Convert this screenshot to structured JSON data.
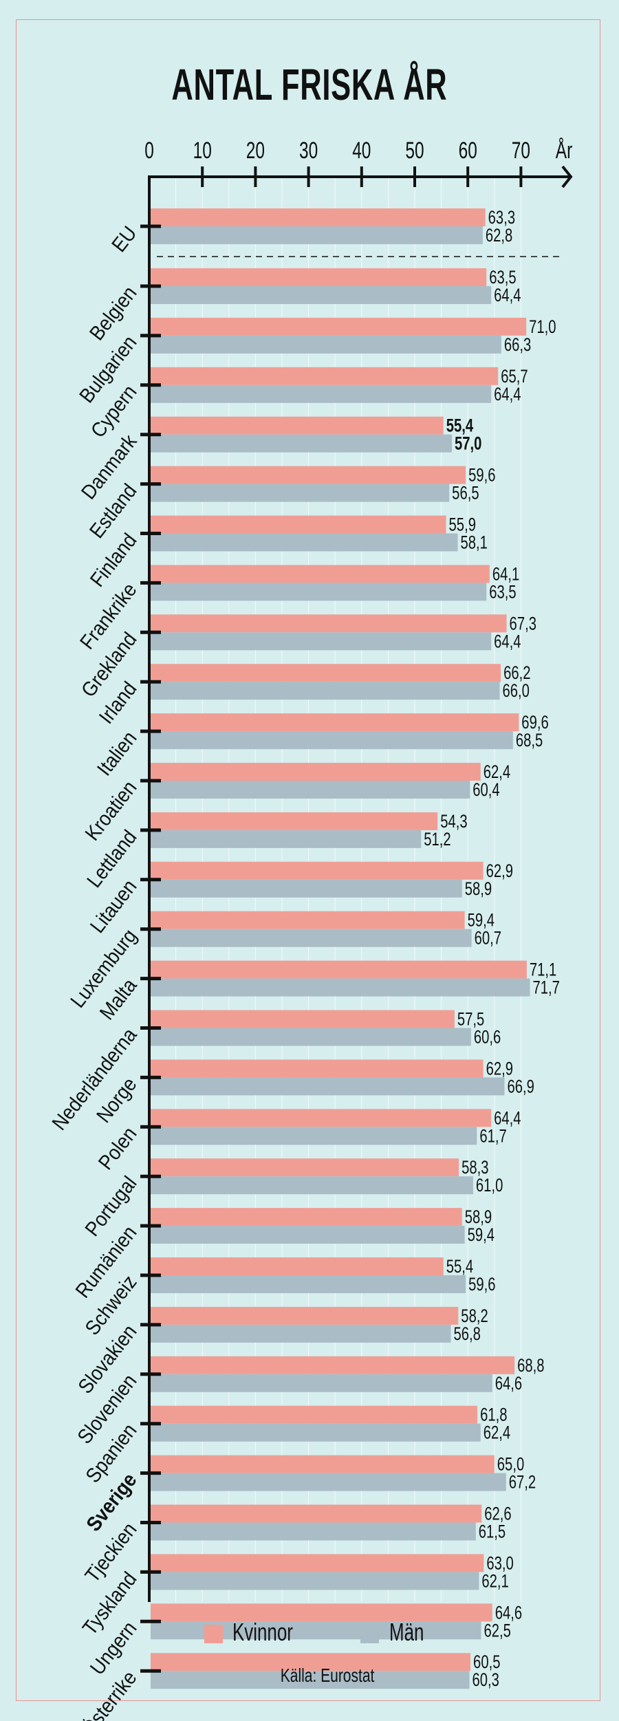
{
  "chart_data": {
    "type": "bar",
    "orientation": "horizontal",
    "title": "ANTAL FRISKA ÅR",
    "xlabel": "År",
    "xlim": [
      0,
      80
    ],
    "xticks": [
      "0",
      "10",
      "20",
      "30",
      "40",
      "50",
      "60",
      "70"
    ],
    "grid": true,
    "legend_placement": "bottom",
    "source": "Källa: Eurostat",
    "colors": {
      "Kvinnor": "#f09e94",
      "Män": "#aabcc6",
      "background": "#d6eeee",
      "border": "#e9918f"
    },
    "categories": [
      "EU",
      "Belgien",
      "Bulgarien",
      "Cypern",
      "Danmark",
      "Estland",
      "Finland",
      "Frankrike",
      "Grekland",
      "Irland",
      "Italien",
      "Kroatien",
      "Lettland",
      "Litauen",
      "Luxemburg",
      "Malta",
      "Nederländerna",
      "Norge",
      "Polen",
      "Portugal",
      "Rumänien",
      "Schweiz",
      "Slovakien",
      "Slovenien",
      "Spanien",
      "Sverige",
      "Tjeckien",
      "Tyskland",
      "Ungern",
      "Österrike"
    ],
    "highlighted_categories": [
      "Sverige"
    ],
    "bold_value_categories": [
      "Danmark"
    ],
    "series": [
      {
        "name": "Kvinnor",
        "values": [
          63.3,
          63.5,
          71.0,
          65.7,
          55.4,
          59.6,
          55.9,
          64.1,
          67.3,
          66.2,
          69.6,
          62.4,
          54.3,
          62.9,
          59.4,
          71.1,
          57.5,
          62.9,
          64.4,
          58.3,
          58.9,
          55.4,
          58.2,
          68.8,
          61.8,
          65.0,
          62.6,
          63.0,
          64.6,
          60.5
        ],
        "labels": [
          "63,3",
          "63,5",
          "71,0",
          "65,7",
          "55,4",
          "59,6",
          "55,9",
          "64,1",
          "67,3",
          "66,2",
          "69,6",
          "62,4",
          "54,3",
          "62,9",
          "59,4",
          "71,1",
          "57,5",
          "62,9",
          "64,4",
          "58,3",
          "58,9",
          "55,4",
          "58,2",
          "68,8",
          "61,8",
          "65,0",
          "62,6",
          "63,0",
          "64,6",
          "60,5"
        ]
      },
      {
        "name": "Män",
        "values": [
          62.8,
          64.4,
          66.3,
          64.4,
          57.0,
          56.5,
          58.1,
          63.5,
          64.4,
          66.0,
          68.5,
          60.4,
          51.2,
          58.9,
          60.7,
          71.7,
          60.6,
          66.9,
          61.7,
          61.0,
          59.4,
          59.6,
          56.8,
          64.6,
          62.4,
          67.2,
          61.5,
          62.1,
          62.5,
          60.3
        ],
        "labels": [
          "62,8",
          "64,4",
          "66,3",
          "64,4",
          "57,0",
          "56,5",
          "58,1",
          "63,5",
          "64,4",
          "66,0",
          "68,5",
          "60,4",
          "51,2",
          "58,9",
          "60,7",
          "71,7",
          "60,6",
          "66,9",
          "61,7",
          "61,0",
          "59,4",
          "59,6",
          "56,8",
          "64,6",
          "62,4",
          "67,2",
          "61,5",
          "62,1",
          "62,5",
          "60,3"
        ]
      }
    ]
  }
}
